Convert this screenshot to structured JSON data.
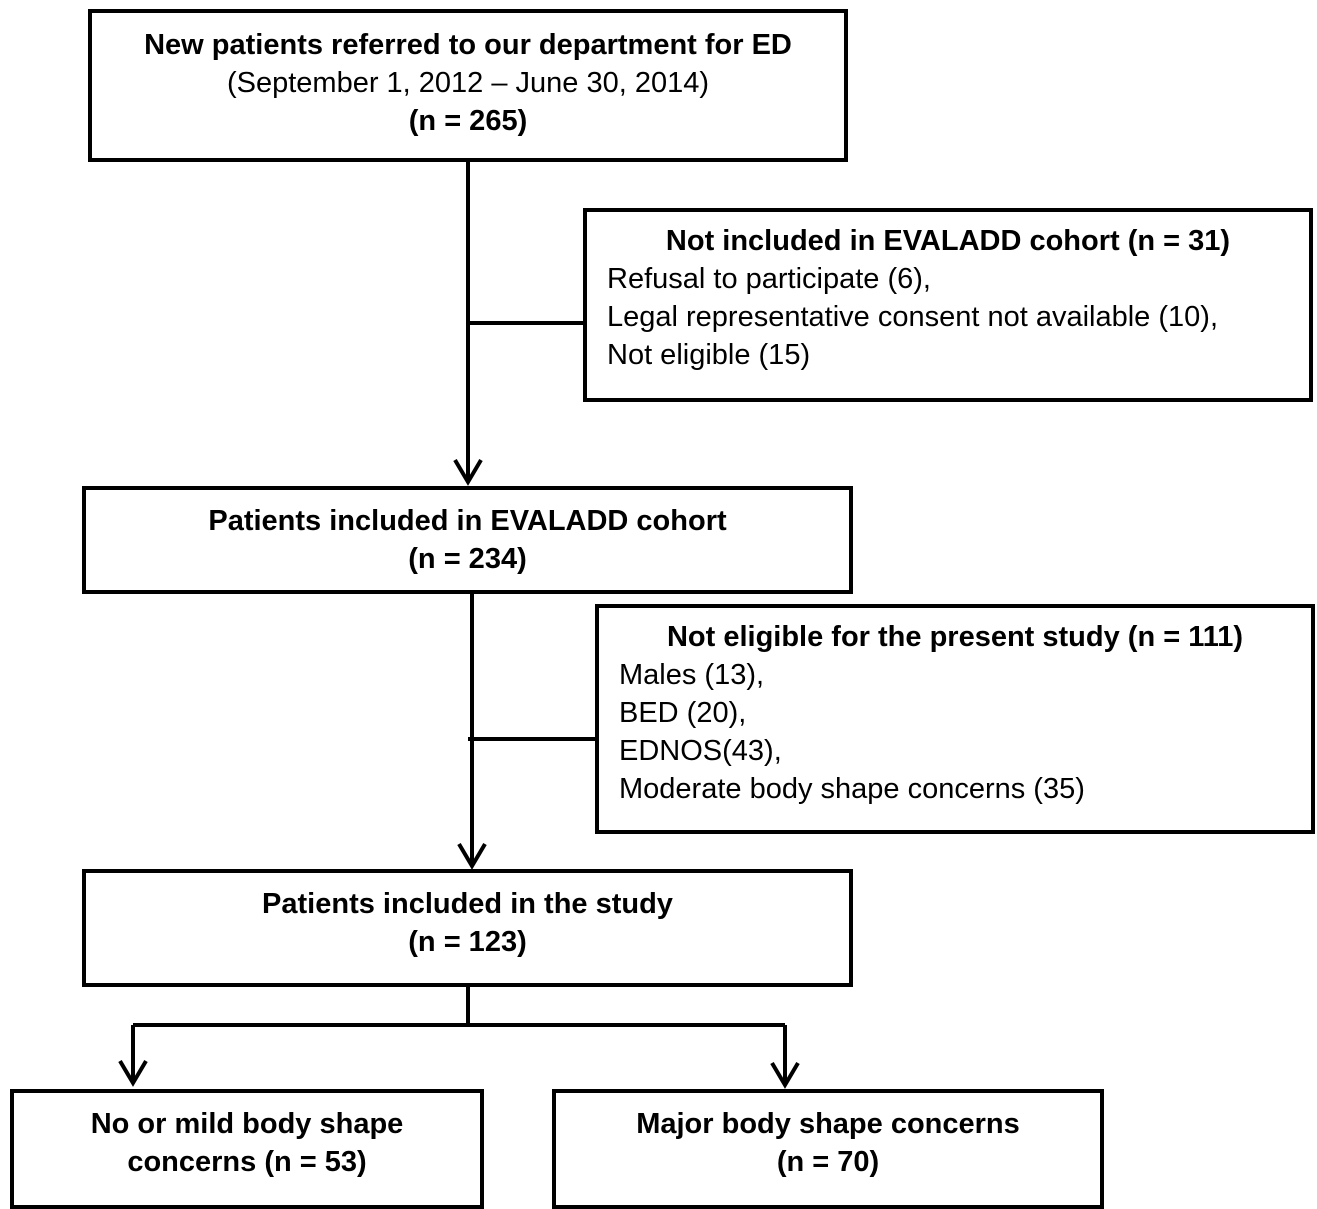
{
  "colors": {
    "stroke": "#000000",
    "background": "#ffffff"
  },
  "boxes": {
    "referred": {
      "title": "New patients referred to our department for ED",
      "period": "(September 1, 2012 – June 30, 2014)",
      "count": "(n = 265)"
    },
    "excluded_cohort": {
      "title": "Not included in EVALADD cohort (n = 31)",
      "reasons": [
        "Refusal to participate (6),",
        "Legal representative consent not available (10),",
        "Not eligible (15)"
      ]
    },
    "cohort": {
      "title": "Patients included in EVALADD cohort",
      "count": "(n = 234)"
    },
    "excluded_study": {
      "title": "Not eligible for the present study (n = 111)",
      "reasons": [
        "Males (13),",
        "BED (20),",
        "EDNOS(43),",
        "Moderate body shape concerns (35)"
      ]
    },
    "study": {
      "title": "Patients included in the study",
      "count": "(n = 123)"
    },
    "group_mild": {
      "title": "No or mild body shape",
      "count": "concerns (n = 53)"
    },
    "group_major": {
      "title": "Major body shape concerns",
      "count": "(n = 70)"
    }
  }
}
